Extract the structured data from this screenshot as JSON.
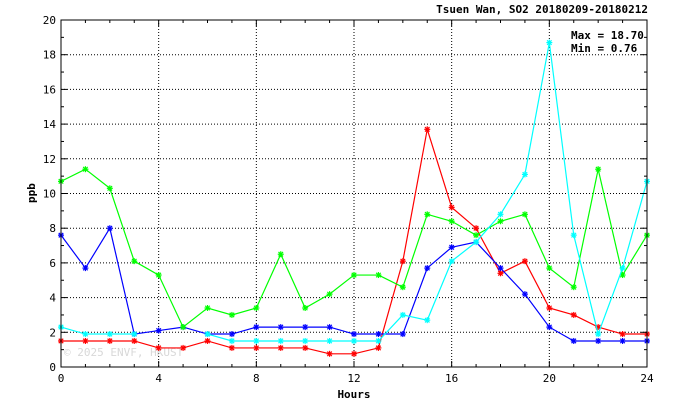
{
  "chart_data": {
    "type": "line",
    "title": "Tsuen Wan, SO2 20180209-20180212",
    "xlabel": "Hours",
    "ylabel": "ppb",
    "xlim": [
      0,
      24
    ],
    "ylim": [
      0,
      20
    ],
    "xticks": [
      0,
      4,
      8,
      12,
      16,
      20,
      24
    ],
    "yticks": [
      0,
      2,
      4,
      6,
      8,
      10,
      12,
      14,
      16,
      18,
      20
    ],
    "grid": true,
    "stats": {
      "max_label": "Max = 18.70",
      "min_label": "Min =  0.76"
    },
    "watermark": "© 2025  ENVF, HKUST",
    "x": [
      0,
      1,
      2,
      3,
      4,
      5,
      6,
      7,
      8,
      9,
      10,
      11,
      12,
      13,
      14,
      15,
      16,
      17,
      18,
      19,
      20,
      21,
      22,
      23,
      24
    ],
    "series": [
      {
        "color": "#ff0000",
        "values": [
          1.5,
          1.5,
          1.5,
          1.5,
          1.1,
          1.1,
          1.5,
          1.1,
          1.1,
          1.1,
          1.1,
          0.76,
          0.76,
          1.1,
          6.1,
          13.7,
          9.2,
          8.0,
          5.4,
          6.1,
          3.4,
          3.0,
          2.3,
          1.9,
          1.9
        ]
      },
      {
        "color": "#0000ff",
        "values": [
          7.6,
          5.7,
          8.0,
          1.9,
          2.1,
          2.3,
          1.9,
          1.9,
          2.3,
          2.3,
          2.3,
          2.3,
          1.9,
          1.9,
          1.9,
          5.7,
          6.9,
          7.2,
          5.7,
          4.2,
          2.3,
          1.5,
          1.5,
          1.5,
          1.5
        ]
      },
      {
        "color": "#00ff00",
        "values": [
          10.7,
          11.4,
          10.3,
          6.1,
          5.3,
          2.3,
          3.4,
          3.0,
          3.4,
          6.5,
          3.4,
          4.2,
          5.3,
          5.3,
          4.6,
          8.8,
          8.4,
          7.6,
          8.4,
          8.8,
          5.7,
          4.6,
          11.4,
          5.3,
          7.6
        ]
      },
      {
        "color": "#00ffff",
        "values": [
          2.3,
          1.9,
          1.9,
          1.9,
          null,
          null,
          1.9,
          1.5,
          1.5,
          1.5,
          1.5,
          1.5,
          1.5,
          1.5,
          3.0,
          2.7,
          6.1,
          7.2,
          8.8,
          11.1,
          18.7,
          7.6,
          1.9,
          5.7,
          10.7
        ]
      }
    ]
  }
}
